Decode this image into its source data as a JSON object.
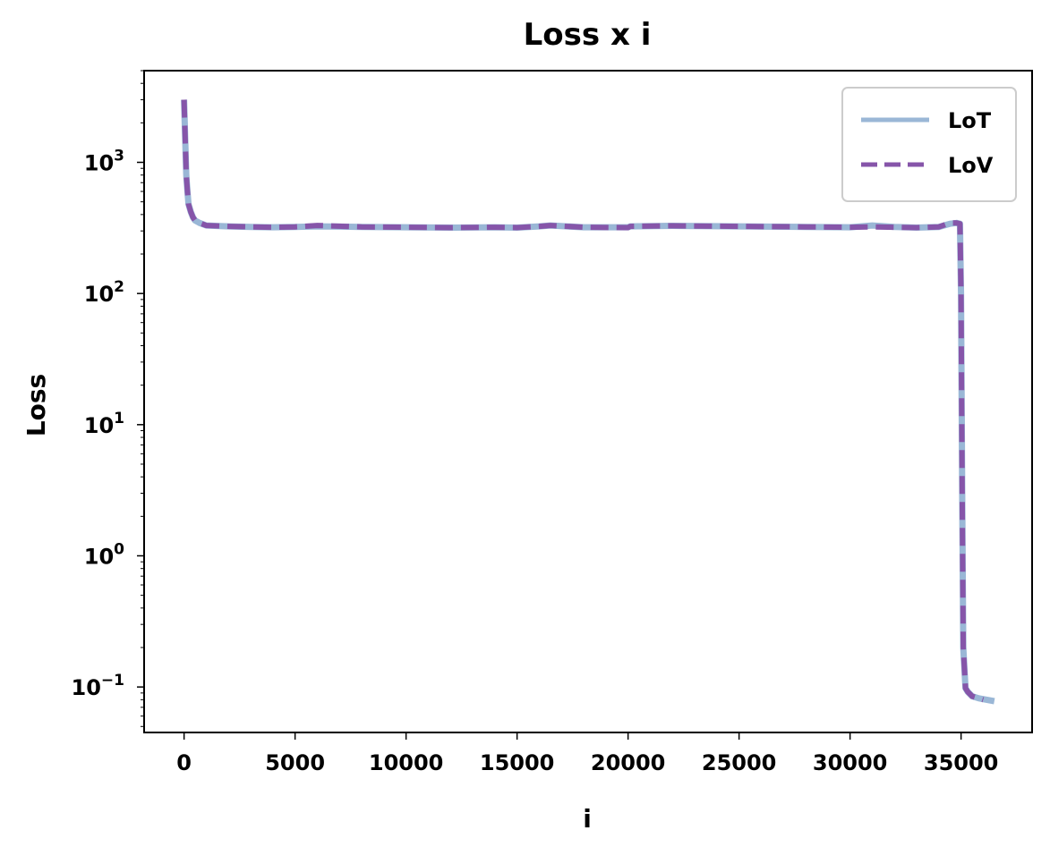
{
  "chart_data": {
    "type": "line",
    "title": "Loss x i",
    "xlabel": "i",
    "ylabel": "Loss",
    "xlim": [
      -1800,
      38200
    ],
    "ylim": [
      0.045,
      5000
    ],
    "yscale": "log",
    "grid": false,
    "legend_position": "top-right",
    "x_ticks": [
      {
        "value": 0,
        "label": "0"
      },
      {
        "value": 5000,
        "label": "5000"
      },
      {
        "value": 10000,
        "label": "10000"
      },
      {
        "value": 15000,
        "label": "15000"
      },
      {
        "value": 20000,
        "label": "20000"
      },
      {
        "value": 25000,
        "label": "25000"
      },
      {
        "value": 30000,
        "label": "30000"
      },
      {
        "value": 35000,
        "label": "35000"
      }
    ],
    "y_ticks": [
      {
        "value": 0.1,
        "base": "10",
        "exp": "−1"
      },
      {
        "value": 1,
        "base": "10",
        "exp": "0"
      },
      {
        "value": 10,
        "base": "10",
        "exp": "1"
      },
      {
        "value": 100,
        "base": "10",
        "exp": "2"
      },
      {
        "value": 1000,
        "base": "10",
        "exp": "3"
      }
    ],
    "series": [
      {
        "name": "LoT",
        "color": "#9ab7d6",
        "style": "solid",
        "x": [
          0,
          50,
          100,
          150,
          200,
          300,
          400,
          500,
          700,
          1000,
          2000,
          3000,
          4000,
          5000,
          6000,
          8000,
          10000,
          12000,
          14000,
          15000,
          16000,
          16500,
          18000,
          20000,
          20100,
          22000,
          25000,
          28000,
          30000,
          31000,
          32000,
          33000,
          34000,
          34500,
          34800,
          34950,
          35000,
          35050,
          35100,
          35200,
          35300,
          35500,
          35800,
          36500
        ],
        "y": [
          3000,
          1500,
          800,
          600,
          480,
          420,
          380,
          360,
          345,
          330,
          325,
          322,
          320,
          322,
          325,
          322,
          320,
          318,
          320,
          318,
          325,
          330,
          320,
          320,
          325,
          328,
          325,
          322,
          320,
          330,
          322,
          318,
          322,
          340,
          345,
          340,
          100,
          3,
          0.2,
          0.098,
          0.092,
          0.085,
          0.082,
          0.078
        ]
      },
      {
        "name": "LoV",
        "color": "#8655a9",
        "style": "dashed",
        "x": [
          0,
          50,
          100,
          150,
          200,
          300,
          400,
          500,
          700,
          1000,
          2000,
          3000,
          4000,
          5000,
          6000,
          8000,
          10000,
          12000,
          14000,
          15000,
          16000,
          16500,
          18000,
          20000,
          20100,
          22000,
          25000,
          28000,
          30000,
          31000,
          32000,
          33000,
          34000,
          34500,
          34800,
          34950,
          35000,
          35050,
          35100,
          35200,
          35300,
          35500,
          35800,
          36000
        ],
        "y": [
          3000,
          1500,
          800,
          600,
          480,
          420,
          380,
          360,
          345,
          330,
          325,
          322,
          320,
          322,
          330,
          322,
          320,
          318,
          320,
          318,
          325,
          330,
          320,
          318,
          325,
          328,
          325,
          322,
          320,
          322,
          320,
          318,
          322,
          345,
          345,
          340,
          100,
          3,
          0.2,
          0.098,
          0.092,
          0.085,
          0.082,
          0.08
        ]
      }
    ]
  }
}
